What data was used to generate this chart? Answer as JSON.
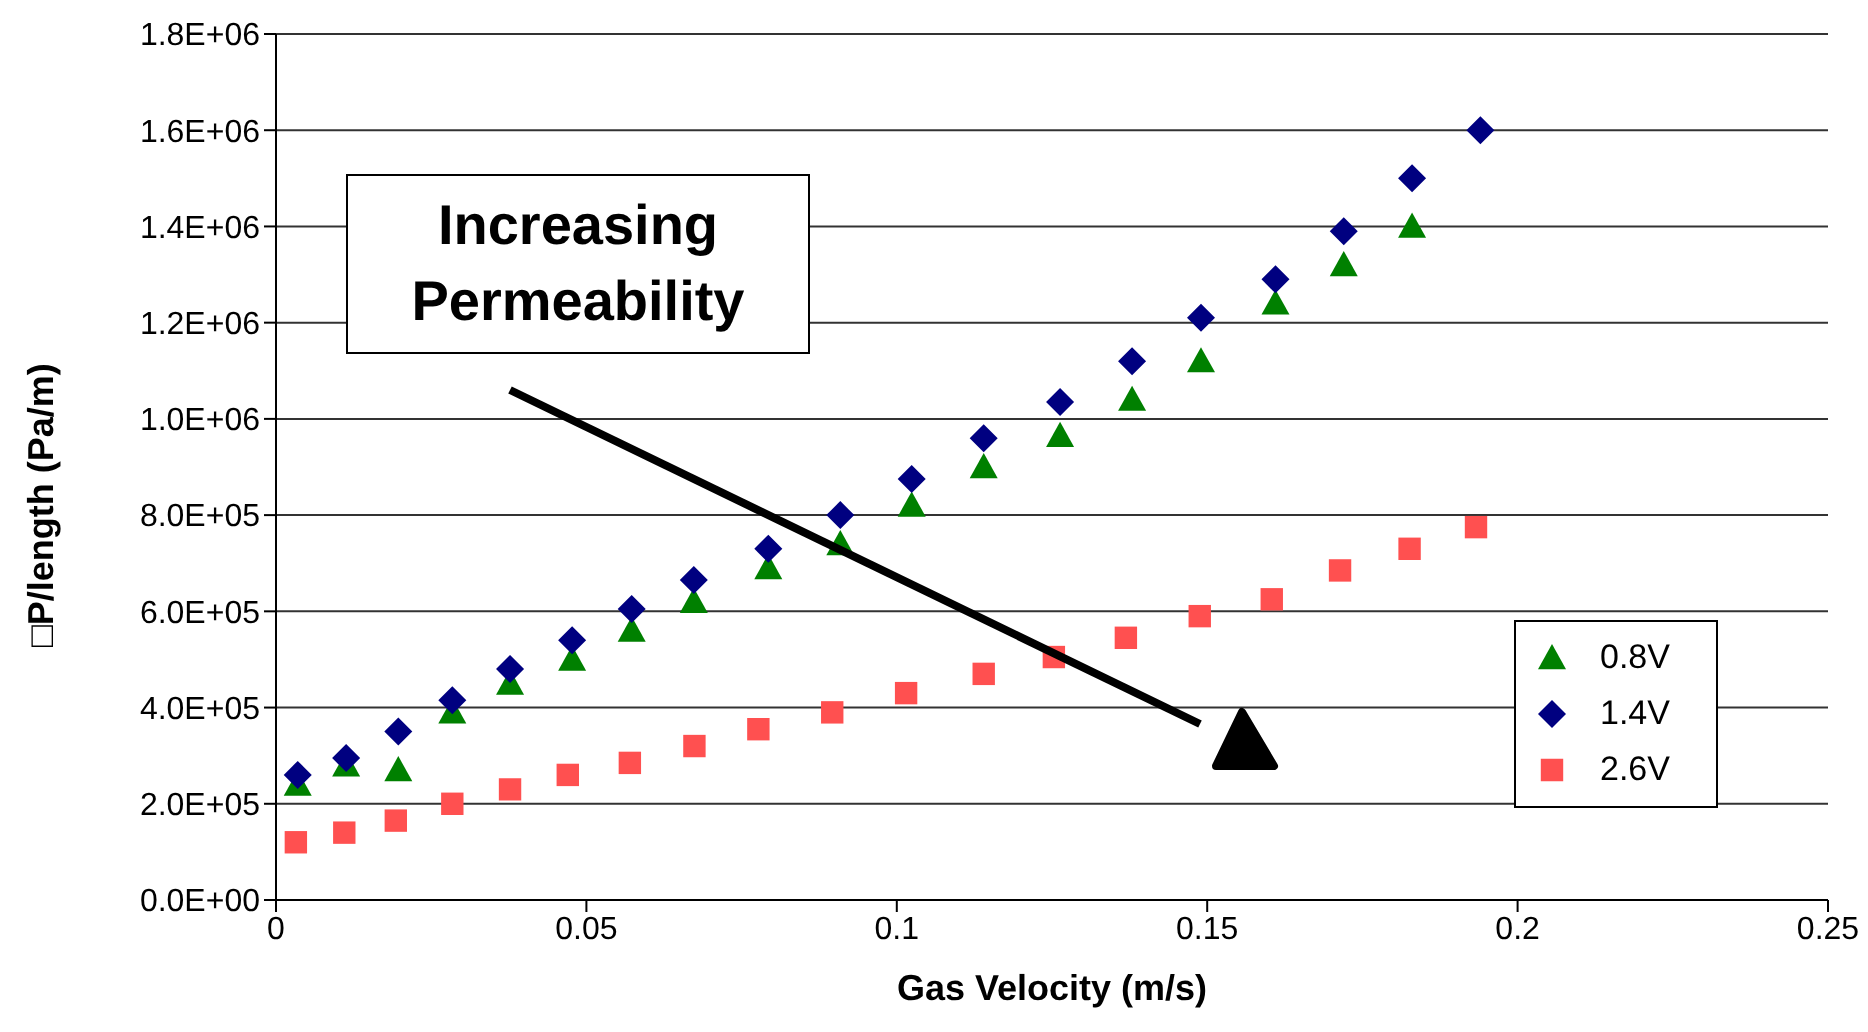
{
  "chart_data": {
    "type": "scatter",
    "xlabel": "Gas Velocity (m/s)",
    "ylabel": "□P/length (Pa/m)",
    "xlim": [
      0,
      0.25
    ],
    "xticks": [
      0,
      0.05,
      0.1,
      0.15,
      0.2,
      0.25
    ],
    "ylim": [
      0,
      1800000
    ],
    "yticks": [
      {
        "value": 0,
        "label": "0.0E+00"
      },
      {
        "value": 200000,
        "label": "2.0E+05"
      },
      {
        "value": 400000,
        "label": "4.0E+05"
      },
      {
        "value": 600000,
        "label": "6.0E+05"
      },
      {
        "value": 800000,
        "label": "8.0E+05"
      },
      {
        "value": 1000000,
        "label": "1.0E+06"
      },
      {
        "value": 1200000,
        "label": "1.2E+06"
      },
      {
        "value": 1400000,
        "label": "1.4E+06"
      },
      {
        "value": 1600000,
        "label": "1.6E+06"
      },
      {
        "value": 1800000,
        "label": "1.8E+06"
      }
    ],
    "grid": "y",
    "legend": "right",
    "annotations": [
      "Increasing Permeability"
    ],
    "series": [
      {
        "name": "0.8V",
        "color": "#008000",
        "marker": "triangle",
        "x": [
          0.0035,
          0.0113,
          0.0197,
          0.0284,
          0.0377,
          0.0477,
          0.0573,
          0.0673,
          0.0793,
          0.0909,
          0.1024,
          0.114,
          0.1263,
          0.1379,
          0.149,
          0.161,
          0.172,
          0.183
        ],
        "values": [
          240000,
          280000,
          270000,
          390000,
          450000,
          500000,
          560000,
          620000,
          690000,
          740000,
          820000,
          900000,
          965000,
          1040000,
          1120000,
          1240000,
          1320000,
          1400000
        ]
      },
      {
        "name": "1.4V",
        "color": "#000080",
        "marker": "diamond",
        "x": [
          0.0035,
          0.0113,
          0.0197,
          0.0284,
          0.0377,
          0.0477,
          0.0573,
          0.0673,
          0.0793,
          0.0909,
          0.1024,
          0.114,
          0.1263,
          0.1379,
          0.149,
          0.161,
          0.172,
          0.183,
          0.194
        ],
        "values": [
          260000,
          295000,
          350000,
          415000,
          480000,
          540000,
          605000,
          665000,
          730000,
          800000,
          875000,
          960000,
          1035000,
          1120000,
          1210000,
          1290000,
          1390000,
          1500000,
          1600000
        ]
      },
      {
        "name": "2.6V",
        "color": "#ff5050",
        "marker": "square",
        "x": [
          0.0032,
          0.011,
          0.0193,
          0.0284,
          0.0377,
          0.047,
          0.057,
          0.0674,
          0.0777,
          0.0896,
          0.1015,
          0.114,
          0.1253,
          0.1369,
          0.1488,
          0.1604,
          0.1714,
          0.1826,
          0.1933
        ],
        "values": [
          120000,
          140000,
          165000,
          200000,
          230000,
          260000,
          285000,
          320000,
          355000,
          390000,
          430000,
          470000,
          505000,
          545000,
          590000,
          625000,
          685000,
          730000,
          775000
        ]
      }
    ]
  }
}
